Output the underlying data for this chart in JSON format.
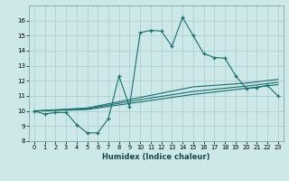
{
  "title": "",
  "xlabel": "Humidex (Indice chaleur)",
  "bg_color": "#cce8e8",
  "grid_color": "#aacccc",
  "line_color": "#1a6e6e",
  "xlim": [
    -0.5,
    23.5
  ],
  "ylim": [
    8,
    17
  ],
  "yticks": [
    8,
    9,
    10,
    11,
    12,
    13,
    14,
    15,
    16
  ],
  "xticks": [
    0,
    1,
    2,
    3,
    4,
    5,
    6,
    7,
    8,
    9,
    10,
    11,
    12,
    13,
    14,
    15,
    16,
    17,
    18,
    19,
    20,
    21,
    22,
    23
  ],
  "line1_x": [
    0,
    1,
    2,
    3,
    4,
    5,
    6,
    7,
    8,
    9,
    10,
    11,
    12,
    13,
    14,
    15,
    16,
    17,
    18,
    19,
    20,
    21,
    22,
    23
  ],
  "line1_y": [
    10.0,
    9.8,
    9.9,
    9.9,
    9.1,
    8.55,
    8.55,
    9.5,
    12.3,
    10.3,
    15.2,
    15.35,
    15.3,
    14.3,
    16.2,
    15.0,
    13.8,
    13.55,
    13.5,
    12.35,
    11.5,
    11.55,
    11.7,
    11.0
  ],
  "line2_x": [
    0,
    5,
    10,
    15,
    20,
    23
  ],
  "line2_y": [
    10.0,
    10.1,
    10.6,
    11.1,
    11.5,
    11.75
  ],
  "line3_x": [
    0,
    5,
    10,
    15,
    20,
    23
  ],
  "line3_y": [
    10.0,
    10.15,
    10.75,
    11.3,
    11.65,
    11.9
  ],
  "line4_x": [
    0,
    5,
    10,
    15,
    20,
    23
  ],
  "line4_y": [
    10.0,
    10.2,
    10.9,
    11.6,
    11.85,
    12.1
  ]
}
